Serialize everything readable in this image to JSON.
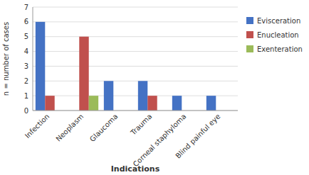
{
  "chart_data": {
    "type": "bar",
    "categories": [
      "Infection",
      "Neoplasm",
      "Glaucoma",
      "Trauma",
      "Corneal staphyloma",
      "Blind painful eye"
    ],
    "series": [
      {
        "name": "Evisceration",
        "color": "#4472C4",
        "values": [
          6,
          0,
          2,
          2,
          1,
          1
        ]
      },
      {
        "name": "Enucleation",
        "color": "#C0504D",
        "values": [
          1,
          5,
          0,
          1,
          0,
          0
        ]
      },
      {
        "name": "Exenteration",
        "color": "#9BBB59",
        "values": [
          0,
          1,
          0,
          0,
          0,
          0
        ]
      }
    ],
    "xlabel": "Indications",
    "ylabel": "n = number of cases",
    "ylim": [
      0,
      7
    ],
    "yticks": [
      0,
      1,
      2,
      3,
      4,
      5,
      6,
      7
    ],
    "grid": true,
    "legend": "right"
  }
}
